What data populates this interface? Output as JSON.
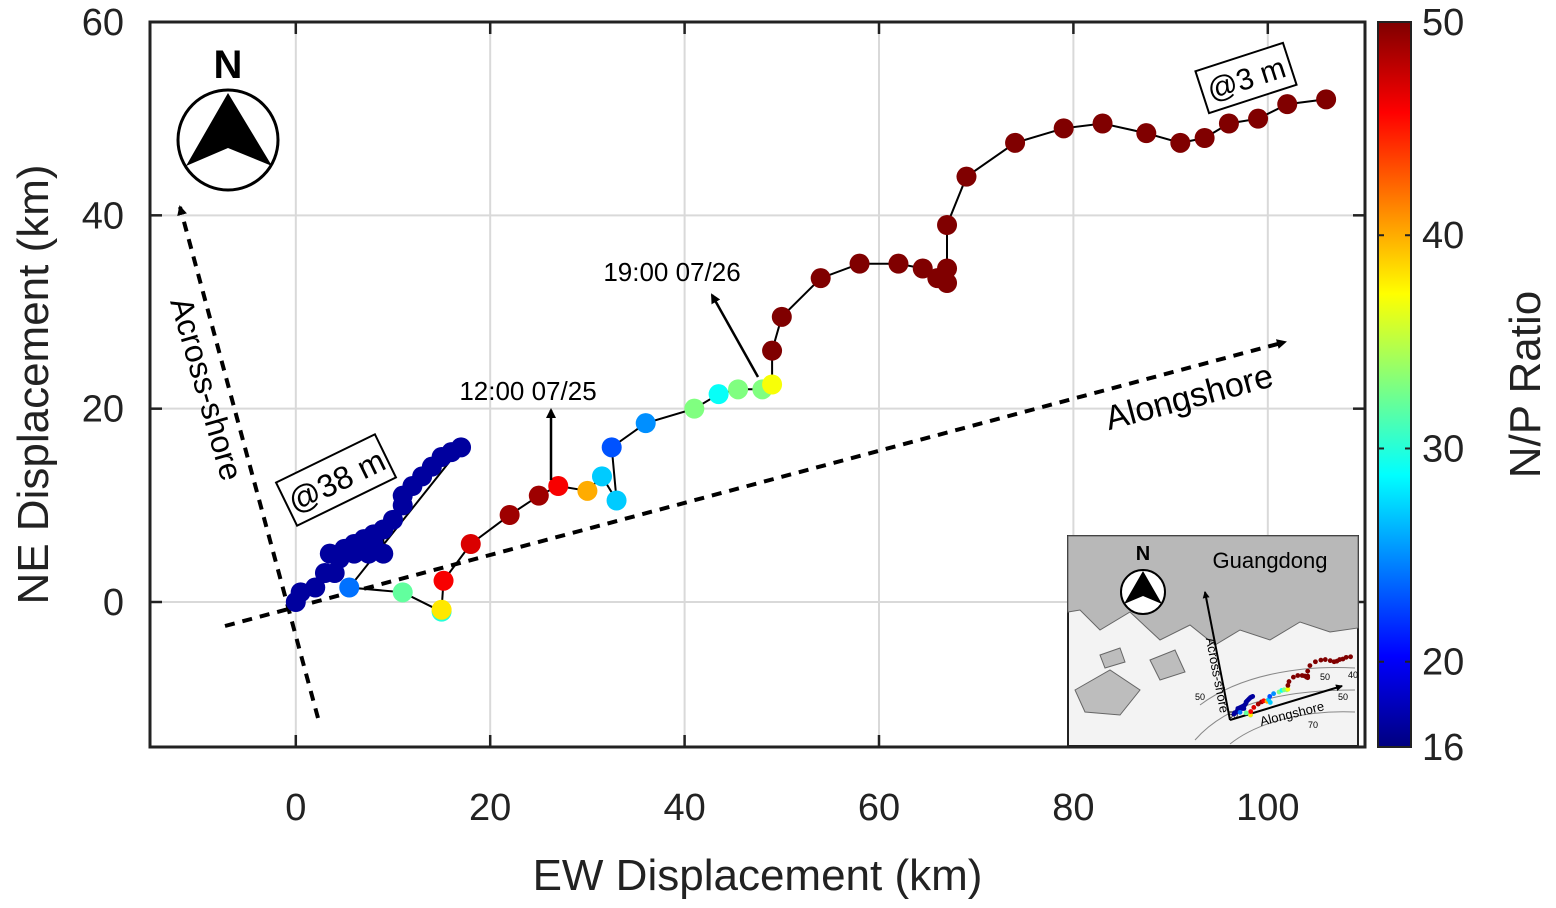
{
  "chart_data": {
    "type": "scatter",
    "title": "",
    "xlabel": "EW Displacement (km)",
    "ylabel": "NE Displacement (km)",
    "xlim": [
      -15,
      110
    ],
    "ylim": [
      -15,
      60
    ],
    "xticks": [
      0,
      20,
      40,
      60,
      80,
      100
    ],
    "yticks": [
      0,
      20,
      40,
      60
    ],
    "grid": true,
    "colorbar": {
      "label": "N/P Ratio",
      "min": 16,
      "max": 50,
      "ticks": [
        16,
        20,
        30,
        40,
        50
      ],
      "colormap": "jet"
    },
    "series": [
      {
        "name": "",
        "points": [
          {
            "x": 0,
            "y": 0,
            "c": 17
          },
          {
            "x": 0.5,
            "y": 1,
            "c": 17
          },
          {
            "x": 2,
            "y": 1.5,
            "c": 17
          },
          {
            "x": 3,
            "y": 3,
            "c": 17
          },
          {
            "x": 4,
            "y": 3,
            "c": 17
          },
          {
            "x": 3.5,
            "y": 5,
            "c": 17
          },
          {
            "x": 4.5,
            "y": 4.5,
            "c": 17
          },
          {
            "x": 5,
            "y": 5.5,
            "c": 17
          },
          {
            "x": 6,
            "y": 5,
            "c": 17
          },
          {
            "x": 6,
            "y": 6,
            "c": 17
          },
          {
            "x": 7,
            "y": 6.5,
            "c": 17
          },
          {
            "x": 7.5,
            "y": 5,
            "c": 17
          },
          {
            "x": 8,
            "y": 6,
            "c": 17
          },
          {
            "x": 8,
            "y": 7,
            "c": 17
          },
          {
            "x": 9,
            "y": 5,
            "c": 17
          },
          {
            "x": 9,
            "y": 7.5,
            "c": 17
          },
          {
            "x": 10,
            "y": 8.5,
            "c": 17
          },
          {
            "x": 11,
            "y": 10,
            "c": 17
          },
          {
            "x": 11,
            "y": 11,
            "c": 17
          },
          {
            "x": 12,
            "y": 12,
            "c": 17
          },
          {
            "x": 13,
            "y": 13,
            "c": 17
          },
          {
            "x": 14,
            "y": 14,
            "c": 17
          },
          {
            "x": 15,
            "y": 15,
            "c": 17
          },
          {
            "x": 16,
            "y": 15.5,
            "c": 17
          },
          {
            "x": 17,
            "y": 16,
            "c": 17
          },
          {
            "x": 5.5,
            "y": 1.5,
            "c": 24
          },
          {
            "x": 11,
            "y": 1,
            "c": 32
          },
          {
            "x": 15,
            "y": -1,
            "c": 30
          },
          {
            "x": 15,
            "y": -0.8,
            "c": 38
          },
          {
            "x": 15.2,
            "y": 2.2,
            "c": 46
          },
          {
            "x": 18,
            "y": 6,
            "c": 47
          },
          {
            "x": 22,
            "y": 9,
            "c": 49
          },
          {
            "x": 25,
            "y": 11,
            "c": 49
          },
          {
            "x": 27,
            "y": 12,
            "c": 46
          },
          {
            "x": 30,
            "y": 11.5,
            "c": 40
          },
          {
            "x": 31.5,
            "y": 13,
            "c": 27
          },
          {
            "x": 33,
            "y": 10.5,
            "c": 27
          },
          {
            "x": 32.5,
            "y": 16,
            "c": 23
          },
          {
            "x": 36,
            "y": 18.5,
            "c": 25
          },
          {
            "x": 41,
            "y": 20,
            "c": 33
          },
          {
            "x": 43.5,
            "y": 21.5,
            "c": 29
          },
          {
            "x": 45.5,
            "y": 22,
            "c": 33
          },
          {
            "x": 48,
            "y": 22,
            "c": 33
          },
          {
            "x": 49,
            "y": 22.5,
            "c": 37
          },
          {
            "x": 49,
            "y": 26,
            "c": 50
          },
          {
            "x": 50,
            "y": 29.5,
            "c": 50
          },
          {
            "x": 54,
            "y": 33.5,
            "c": 50
          },
          {
            "x": 58,
            "y": 35,
            "c": 50
          },
          {
            "x": 62,
            "y": 35,
            "c": 50
          },
          {
            "x": 64.5,
            "y": 34.5,
            "c": 50
          },
          {
            "x": 66,
            "y": 33.5,
            "c": 50
          },
          {
            "x": 67,
            "y": 33,
            "c": 50
          },
          {
            "x": 67,
            "y": 34.5,
            "c": 50
          },
          {
            "x": 67,
            "y": 39,
            "c": 50
          },
          {
            "x": 69,
            "y": 44,
            "c": 50
          },
          {
            "x": 74,
            "y": 47.5,
            "c": 50
          },
          {
            "x": 79,
            "y": 49,
            "c": 50
          },
          {
            "x": 83,
            "y": 49.5,
            "c": 50
          },
          {
            "x": 87.5,
            "y": 48.5,
            "c": 50
          },
          {
            "x": 91,
            "y": 47.5,
            "c": 50
          },
          {
            "x": 93.5,
            "y": 48,
            "c": 50
          },
          {
            "x": 96,
            "y": 49.5,
            "c": 50
          },
          {
            "x": 99,
            "y": 50,
            "c": 50
          },
          {
            "x": 102,
            "y": 51.5,
            "c": 50
          },
          {
            "x": 106,
            "y": 52,
            "c": 50
          }
        ]
      }
    ],
    "annotations": [
      {
        "text": "@38 m"
      },
      {
        "text": "@3 m"
      },
      {
        "text": "12:00 07/25"
      },
      {
        "text": "19:00 07/26"
      },
      {
        "text": "Across-shore"
      },
      {
        "text": "Alongshore"
      }
    ],
    "north_arrow": {
      "label": "N"
    },
    "inset": {
      "region_label": "Guangdong",
      "north_label": "N",
      "across_label": "Across-shore",
      "along_label": "Alongshore",
      "contour_labels": [
        "50",
        "50",
        "50",
        "70",
        "40",
        "50"
      ]
    }
  }
}
